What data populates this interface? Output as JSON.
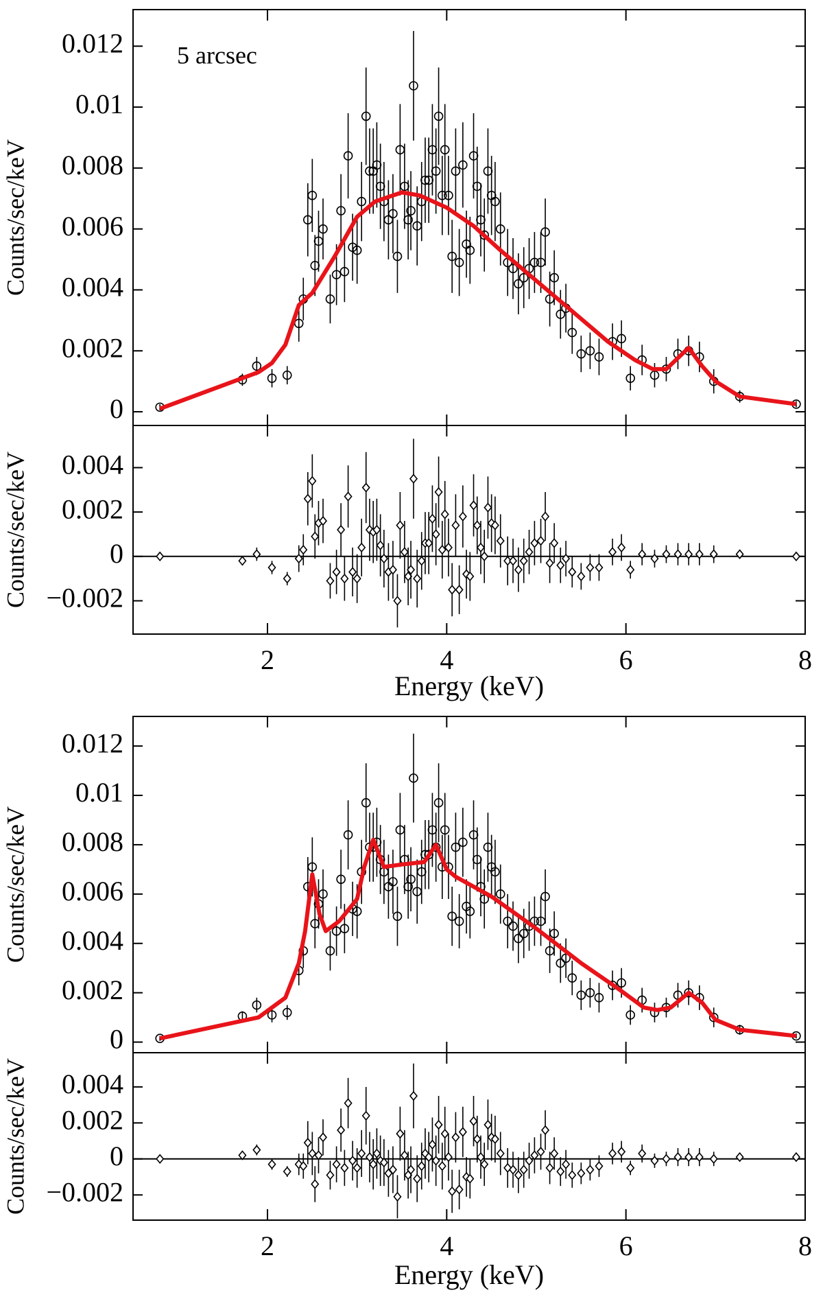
{
  "chart_data": [
    {
      "type": "spectrum",
      "annotation": "5 arcsec",
      "ylabel": "Counts/sec/keV",
      "xlim": [
        0.5,
        8
      ],
      "xticks": [
        2,
        4,
        6,
        8
      ],
      "ylim": [
        -0.00045,
        0.0132
      ],
      "yticks": [
        0,
        0.002,
        0.004,
        0.006,
        0.008,
        0.01,
        0.012
      ],
      "x": [
        0.8,
        1.72,
        1.88,
        2.05,
        2.22,
        2.35,
        2.4,
        2.45,
        2.5,
        2.53,
        2.57,
        2.62,
        2.7,
        2.77,
        2.82,
        2.86,
        2.9,
        2.95,
        3.0,
        3.05,
        3.1,
        3.14,
        3.18,
        3.22,
        3.26,
        3.3,
        3.35,
        3.4,
        3.45,
        3.48,
        3.53,
        3.57,
        3.6,
        3.63,
        3.67,
        3.72,
        3.76,
        3.8,
        3.84,
        3.88,
        3.91,
        3.95,
        3.98,
        4.02,
        4.06,
        4.1,
        4.14,
        4.18,
        4.22,
        4.26,
        4.3,
        4.34,
        4.38,
        4.42,
        4.46,
        4.5,
        4.54,
        4.6,
        4.68,
        4.74,
        4.8,
        4.86,
        4.92,
        4.98,
        5.05,
        5.1,
        5.15,
        5.2,
        5.27,
        5.33,
        5.4,
        5.5,
        5.6,
        5.7,
        5.85,
        5.95,
        6.05,
        6.18,
        6.32,
        6.45,
        6.58,
        6.7,
        6.82,
        6.98,
        7.27,
        7.9
      ],
      "values": [
        0.00015,
        0.00105,
        0.0015,
        0.0011,
        0.0012,
        0.0029,
        0.0037,
        0.0063,
        0.0071,
        0.0048,
        0.0056,
        0.006,
        0.0037,
        0.0045,
        0.0066,
        0.0046,
        0.0084,
        0.0054,
        0.0053,
        0.0069,
        0.0097,
        0.0079,
        0.0079,
        0.0081,
        0.0074,
        0.0069,
        0.0063,
        0.0065,
        0.0051,
        0.0086,
        0.0074,
        0.0063,
        0.0066,
        0.0107,
        0.0061,
        0.0069,
        0.0076,
        0.0076,
        0.0086,
        0.0079,
        0.0097,
        0.0071,
        0.0086,
        0.0071,
        0.0051,
        0.0079,
        0.0049,
        0.0081,
        0.0055,
        0.0053,
        0.0084,
        0.0074,
        0.0063,
        0.0058,
        0.0079,
        0.0071,
        0.0069,
        0.006,
        0.0049,
        0.0047,
        0.0042,
        0.0044,
        0.0047,
        0.0049,
        0.0049,
        0.0059,
        0.0037,
        0.0044,
        0.0032,
        0.0034,
        0.0026,
        0.0019,
        0.002,
        0.0018,
        0.0023,
        0.0024,
        0.0011,
        0.0017,
        0.0012,
        0.0014,
        0.0019,
        0.002,
        0.0018,
        0.001,
        0.0005,
        0.00025
      ],
      "errors": [
        0.0001,
        0.0002,
        0.0003,
        0.0003,
        0.0003,
        0.0006,
        0.0007,
        0.0012,
        0.0012,
        0.001,
        0.001,
        0.001,
        0.0008,
        0.001,
        0.0012,
        0.001,
        0.0014,
        0.0011,
        0.0011,
        0.0013,
        0.0016,
        0.0014,
        0.0014,
        0.0014,
        0.0014,
        0.0013,
        0.0013,
        0.0013,
        0.0012,
        0.0015,
        0.0014,
        0.0013,
        0.0013,
        0.0018,
        0.0013,
        0.0013,
        0.0014,
        0.0014,
        0.0015,
        0.0014,
        0.0016,
        0.0013,
        0.0015,
        0.0013,
        0.0012,
        0.0014,
        0.0011,
        0.0014,
        0.0011,
        0.0011,
        0.0014,
        0.0013,
        0.0012,
        0.0012,
        0.0014,
        0.0013,
        0.0013,
        0.0012,
        0.0011,
        0.001,
        0.001,
        0.001,
        0.001,
        0.001,
        0.001,
        0.0011,
        0.0009,
        0.0009,
        0.0008,
        0.0008,
        0.0007,
        0.0006,
        0.0006,
        0.0006,
        0.0006,
        0.0006,
        0.0004,
        0.0005,
        0.0004,
        0.0004,
        0.0005,
        0.0005,
        0.0005,
        0.0004,
        0.0002,
        0.0001
      ],
      "model": {
        "color": "#e8141a",
        "x": [
          0.8,
          1.9,
          2.05,
          2.2,
          2.35,
          2.5,
          2.75,
          3.0,
          3.2,
          3.5,
          3.7,
          4.0,
          4.3,
          4.6,
          5.0,
          5.4,
          5.8,
          6.1,
          6.3,
          6.45,
          6.7,
          6.85,
          7.0,
          7.27,
          7.9
        ],
        "values": [
          0.0001,
          0.0013,
          0.0016,
          0.0022,
          0.0035,
          0.0039,
          0.0051,
          0.0064,
          0.0069,
          0.0072,
          0.0071,
          0.0067,
          0.0061,
          0.0053,
          0.0043,
          0.0033,
          0.0023,
          0.0017,
          0.0014,
          0.0014,
          0.0021,
          0.0015,
          0.001,
          0.0005,
          0.00025
        ]
      }
    },
    {
      "type": "residual",
      "ylabel": "Counts/sec/keV",
      "xlabel": "Energy (keV)",
      "xlim": [
        0.5,
        8
      ],
      "xticks": [
        2,
        4,
        6,
        8
      ],
      "ylim": [
        -0.0035,
        0.0059
      ],
      "yticks": [
        {
          "value": -0.002,
          "label": "−0.002"
        },
        0,
        0.002,
        0.004
      ],
      "x": [
        0.8,
        1.72,
        1.88,
        2.05,
        2.22,
        2.35,
        2.4,
        2.45,
        2.5,
        2.53,
        2.57,
        2.62,
        2.7,
        2.77,
        2.82,
        2.86,
        2.9,
        2.95,
        3.0,
        3.05,
        3.1,
        3.14,
        3.18,
        3.22,
        3.26,
        3.3,
        3.35,
        3.4,
        3.45,
        3.48,
        3.53,
        3.57,
        3.6,
        3.63,
        3.67,
        3.72,
        3.76,
        3.8,
        3.84,
        3.88,
        3.91,
        3.95,
        3.98,
        4.02,
        4.06,
        4.1,
        4.14,
        4.18,
        4.22,
        4.26,
        4.3,
        4.34,
        4.38,
        4.42,
        4.46,
        4.5,
        4.54,
        4.6,
        4.68,
        4.74,
        4.8,
        4.86,
        4.92,
        4.98,
        5.05,
        5.1,
        5.15,
        5.2,
        5.27,
        5.33,
        5.4,
        5.5,
        5.6,
        5.7,
        5.85,
        5.95,
        6.05,
        6.18,
        6.32,
        6.45,
        6.58,
        6.7,
        6.82,
        6.98,
        7.27,
        7.9
      ],
      "values": [
        0,
        -0.0002,
        0.0001,
        -0.0005,
        -0.001,
        -0.0001,
        0.0003,
        0.0026,
        0.0034,
        0.0009,
        0.0015,
        0.0016,
        -0.0011,
        -0.0007,
        0.0012,
        -0.001,
        0.0027,
        -0.0007,
        -0.001,
        0.0004,
        0.0031,
        0.0012,
        0.0011,
        0.0012,
        0.0005,
        -0.0001,
        -0.0007,
        -0.0006,
        -0.002,
        0.0014,
        0.0002,
        -0.0009,
        -0.0006,
        0.0035,
        -0.001,
        -0.0002,
        0.0006,
        0.0006,
        0.0017,
        0.001,
        0.0029,
        0.0003,
        0.0019,
        0.0004,
        -0.0015,
        0.0014,
        -0.0015,
        0.0018,
        -0.0008,
        -0.0009,
        0.0023,
        0.0014,
        0.0004,
        0,
        0.0022,
        0.0015,
        0.0014,
        0.0007,
        -0.0002,
        -0.0002,
        -0.0006,
        -0.0002,
        0.0002,
        0.0006,
        0.0007,
        0.0018,
        -0.0003,
        0.0006,
        -0.0004,
        -0.0001,
        -0.0007,
        -0.0009,
        -0.0005,
        -0.0005,
        0.0002,
        0.0004,
        -0.0006,
        0.0001,
        -0.0001,
        0.0001,
        0.0001,
        0.0001,
        0.0001,
        0.0001,
        0.0001,
        0
      ],
      "errors": [
        0.0001,
        0.0002,
        0.0003,
        0.0003,
        0.0003,
        0.0006,
        0.0007,
        0.0012,
        0.0012,
        0.001,
        0.001,
        0.001,
        0.0008,
        0.001,
        0.0012,
        0.001,
        0.0014,
        0.0011,
        0.0011,
        0.0013,
        0.0016,
        0.0014,
        0.0014,
        0.0014,
        0.0014,
        0.0013,
        0.0013,
        0.0013,
        0.0012,
        0.0015,
        0.0014,
        0.0013,
        0.0013,
        0.0018,
        0.0013,
        0.0013,
        0.0014,
        0.0014,
        0.0015,
        0.0014,
        0.0016,
        0.0013,
        0.0015,
        0.0013,
        0.0012,
        0.0014,
        0.0011,
        0.0014,
        0.0011,
        0.0011,
        0.0014,
        0.0013,
        0.0012,
        0.0012,
        0.0014,
        0.0013,
        0.0013,
        0.0012,
        0.0011,
        0.001,
        0.001,
        0.001,
        0.001,
        0.001,
        0.001,
        0.0011,
        0.0009,
        0.0009,
        0.0008,
        0.0008,
        0.0007,
        0.0006,
        0.0006,
        0.0006,
        0.0006,
        0.0006,
        0.0004,
        0.0005,
        0.0004,
        0.0004,
        0.0005,
        0.0005,
        0.0005,
        0.0004,
        0.0002,
        0.0001
      ]
    },
    {
      "type": "spectrum",
      "ylabel": "Counts/sec/keV",
      "xlim": [
        0.5,
        8
      ],
      "xticks": [
        2,
        4,
        6,
        8
      ],
      "ylim": [
        -0.00043,
        0.0132
      ],
      "yticks": [
        0,
        0.002,
        0.004,
        0.006,
        0.008,
        0.01,
        0.012
      ],
      "x": [
        0.8,
        1.72,
        1.88,
        2.05,
        2.22,
        2.35,
        2.4,
        2.45,
        2.5,
        2.53,
        2.57,
        2.62,
        2.7,
        2.77,
        2.82,
        2.86,
        2.9,
        2.95,
        3.0,
        3.05,
        3.1,
        3.14,
        3.18,
        3.22,
        3.26,
        3.3,
        3.35,
        3.4,
        3.45,
        3.48,
        3.53,
        3.57,
        3.6,
        3.63,
        3.67,
        3.72,
        3.76,
        3.8,
        3.84,
        3.88,
        3.91,
        3.95,
        3.98,
        4.02,
        4.06,
        4.1,
        4.14,
        4.18,
        4.22,
        4.26,
        4.3,
        4.34,
        4.38,
        4.42,
        4.46,
        4.5,
        4.54,
        4.6,
        4.68,
        4.74,
        4.8,
        4.86,
        4.92,
        4.98,
        5.05,
        5.1,
        5.15,
        5.2,
        5.27,
        5.33,
        5.4,
        5.5,
        5.6,
        5.7,
        5.85,
        5.95,
        6.05,
        6.18,
        6.32,
        6.45,
        6.58,
        6.7,
        6.82,
        6.98,
        7.27,
        7.9
      ],
      "values": [
        0.00015,
        0.00105,
        0.0015,
        0.0011,
        0.0012,
        0.0029,
        0.0037,
        0.0063,
        0.0071,
        0.0048,
        0.0056,
        0.006,
        0.0037,
        0.0045,
        0.0066,
        0.0046,
        0.0084,
        0.0054,
        0.0053,
        0.0069,
        0.0097,
        0.0079,
        0.0079,
        0.0081,
        0.0074,
        0.0069,
        0.0063,
        0.0065,
        0.0051,
        0.0086,
        0.0074,
        0.0063,
        0.0066,
        0.0107,
        0.0061,
        0.0069,
        0.0076,
        0.0076,
        0.0086,
        0.0079,
        0.0097,
        0.0071,
        0.0086,
        0.0071,
        0.0051,
        0.0079,
        0.0049,
        0.0081,
        0.0055,
        0.0053,
        0.0084,
        0.0074,
        0.0063,
        0.0058,
        0.0079,
        0.0071,
        0.0069,
        0.006,
        0.0049,
        0.0047,
        0.0042,
        0.0044,
        0.0047,
        0.0049,
        0.0049,
        0.0059,
        0.0037,
        0.0044,
        0.0032,
        0.0034,
        0.0026,
        0.0019,
        0.002,
        0.0018,
        0.0023,
        0.0024,
        0.0011,
        0.0017,
        0.0012,
        0.0014,
        0.0019,
        0.002,
        0.0018,
        0.001,
        0.0005,
        0.00025
      ],
      "errors": [
        0.0001,
        0.0002,
        0.0003,
        0.0003,
        0.0003,
        0.0006,
        0.0007,
        0.0012,
        0.0012,
        0.001,
        0.001,
        0.001,
        0.0008,
        0.001,
        0.0012,
        0.001,
        0.0014,
        0.0011,
        0.0011,
        0.0013,
        0.0016,
        0.0014,
        0.0014,
        0.0014,
        0.0014,
        0.0013,
        0.0013,
        0.0013,
        0.0012,
        0.0015,
        0.0014,
        0.0013,
        0.0013,
        0.0018,
        0.0013,
        0.0013,
        0.0014,
        0.0014,
        0.0015,
        0.0014,
        0.0016,
        0.0013,
        0.0015,
        0.0013,
        0.0012,
        0.0014,
        0.0011,
        0.0014,
        0.0011,
        0.0011,
        0.0014,
        0.0013,
        0.0012,
        0.0012,
        0.0014,
        0.0013,
        0.0013,
        0.0012,
        0.0011,
        0.001,
        0.001,
        0.001,
        0.001,
        0.001,
        0.001,
        0.0011,
        0.0009,
        0.0009,
        0.0008,
        0.0008,
        0.0007,
        0.0006,
        0.0006,
        0.0006,
        0.0006,
        0.0006,
        0.0004,
        0.0005,
        0.0004,
        0.0004,
        0.0005,
        0.0005,
        0.0005,
        0.0004,
        0.0002,
        0.0001
      ],
      "model": {
        "color": "#e8141a",
        "x": [
          0.8,
          1.9,
          2.2,
          2.35,
          2.42,
          2.5,
          2.58,
          2.65,
          2.8,
          3.0,
          3.08,
          3.18,
          3.3,
          3.5,
          3.75,
          3.88,
          4.0,
          4.1,
          4.5,
          5.0,
          5.5,
          5.9,
          6.2,
          6.35,
          6.5,
          6.7,
          6.85,
          7.0,
          7.27,
          7.9
        ],
        "values": [
          0.00015,
          0.001,
          0.0018,
          0.0032,
          0.0045,
          0.0068,
          0.0052,
          0.0045,
          0.0049,
          0.0058,
          0.0071,
          0.0082,
          0.0071,
          0.0072,
          0.0073,
          0.008,
          0.007,
          0.0067,
          0.0059,
          0.0046,
          0.0032,
          0.0022,
          0.0014,
          0.0013,
          0.0014,
          0.002,
          0.0016,
          0.0009,
          0.0005,
          0.00025
        ]
      }
    },
    {
      "type": "residual",
      "ylabel": "Counts/sec/keV",
      "xlabel": "Energy (keV)",
      "xlim": [
        0.5,
        8
      ],
      "xticks": [
        2,
        4,
        6,
        8
      ],
      "ylim": [
        -0.0034,
        0.0059
      ],
      "yticks": [
        {
          "value": -0.002,
          "label": "−0.002"
        },
        0,
        0.002,
        0.004
      ],
      "x": [
        0.8,
        1.72,
        1.88,
        2.05,
        2.22,
        2.35,
        2.4,
        2.45,
        2.5,
        2.53,
        2.57,
        2.62,
        2.7,
        2.77,
        2.82,
        2.86,
        2.9,
        2.95,
        3.0,
        3.05,
        3.1,
        3.14,
        3.18,
        3.22,
        3.26,
        3.3,
        3.35,
        3.4,
        3.45,
        3.48,
        3.53,
        3.57,
        3.6,
        3.63,
        3.67,
        3.72,
        3.76,
        3.8,
        3.84,
        3.88,
        3.91,
        3.95,
        3.98,
        4.02,
        4.06,
        4.1,
        4.14,
        4.18,
        4.22,
        4.26,
        4.3,
        4.34,
        4.38,
        4.42,
        4.46,
        4.5,
        4.54,
        4.6,
        4.68,
        4.74,
        4.8,
        4.86,
        4.92,
        4.98,
        5.05,
        5.1,
        5.15,
        5.2,
        5.27,
        5.33,
        5.4,
        5.5,
        5.6,
        5.7,
        5.85,
        5.95,
        6.05,
        6.18,
        6.32,
        6.45,
        6.58,
        6.7,
        6.82,
        6.98,
        7.27,
        7.9
      ],
      "values": [
        0,
        0.0002,
        0.0005,
        -0.0003,
        -0.0007,
        -0.0003,
        -0.0004,
        0.0009,
        0.0003,
        -0.0014,
        0.0002,
        0.0012,
        -0.0009,
        -0.0003,
        0.0016,
        -0.0005,
        0.0031,
        -0.0001,
        -0.0005,
        0.0003,
        0.0024,
        0.0001,
        -0.0003,
        0.0003,
        -0.0001,
        -0.0002,
        -0.0008,
        -0.0006,
        -0.0021,
        0.0014,
        0.0002,
        -0.0009,
        -0.0006,
        0.0035,
        -0.0011,
        -0.0004,
        0.0003,
        0.0001,
        0.0008,
        -0.0001,
        0.0019,
        -0.0004,
        0.0014,
        0.0001,
        -0.0018,
        0.0012,
        -0.0017,
        0.0015,
        -0.001,
        -0.0011,
        0.0021,
        0.0011,
        0.0001,
        -0.0003,
        0.0019,
        0.0012,
        0.0011,
        0.0003,
        -0.0005,
        -0.0006,
        -0.0009,
        -0.0006,
        -0.0001,
        0.0002,
        0.0004,
        0.0016,
        -0.0005,
        0.0003,
        -0.0007,
        -0.0003,
        -0.0009,
        -0.0008,
        -0.0006,
        -0.0004,
        0.0003,
        0.0004,
        -0.0005,
        0.0003,
        -0.0001,
        0,
        0.0001,
        0.0001,
        0.0001,
        0,
        0.0001,
        0.0001
      ],
      "errors": [
        0.0001,
        0.0002,
        0.0003,
        0.0003,
        0.0003,
        0.0006,
        0.0007,
        0.0012,
        0.0012,
        0.001,
        0.001,
        0.001,
        0.0008,
        0.001,
        0.0012,
        0.001,
        0.0014,
        0.0011,
        0.0011,
        0.0013,
        0.0016,
        0.0014,
        0.0014,
        0.0014,
        0.0014,
        0.0013,
        0.0013,
        0.0013,
        0.0012,
        0.0015,
        0.0014,
        0.0013,
        0.0013,
        0.0018,
        0.0013,
        0.0013,
        0.0014,
        0.0014,
        0.0015,
        0.0014,
        0.0016,
        0.0013,
        0.0015,
        0.0013,
        0.0012,
        0.0014,
        0.0011,
        0.0014,
        0.0011,
        0.0011,
        0.0014,
        0.0013,
        0.0012,
        0.0012,
        0.0014,
        0.0013,
        0.0013,
        0.0012,
        0.0011,
        0.001,
        0.001,
        0.001,
        0.001,
        0.001,
        0.001,
        0.0011,
        0.0009,
        0.0009,
        0.0008,
        0.0008,
        0.0007,
        0.0006,
        0.0006,
        0.0006,
        0.0006,
        0.0006,
        0.0004,
        0.0005,
        0.0004,
        0.0004,
        0.0005,
        0.0005,
        0.0005,
        0.0004,
        0.0002,
        0.0001
      ]
    }
  ]
}
